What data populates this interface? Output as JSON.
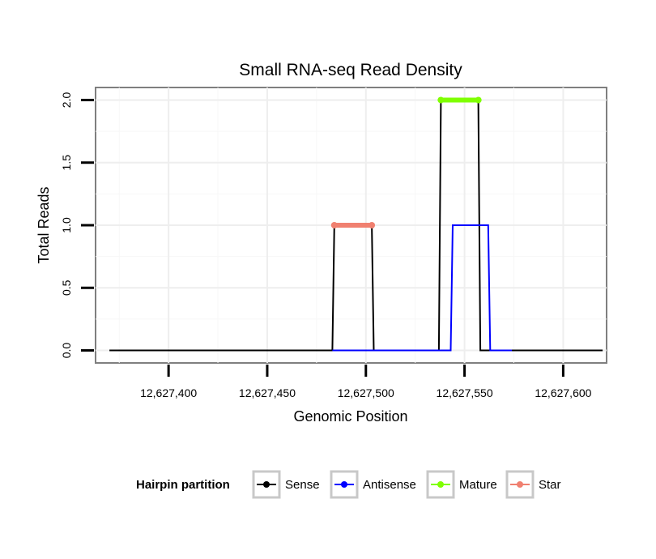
{
  "chart_data": {
    "type": "line",
    "title": "Small RNA-seq Read Density",
    "xlabel": "Genomic Position",
    "ylabel": "Total Reads",
    "xlim": [
      12627363,
      12627622
    ],
    "ylim": [
      -0.1,
      2.1
    ],
    "x_ticks": [
      12627400,
      12627450,
      12627500,
      12627550,
      12627600
    ],
    "x_tick_labels": [
      "12,627,400",
      "12,627,450",
      "12,627,500",
      "12,627,550",
      "12,627,600"
    ],
    "y_ticks": [
      0,
      0.5,
      1,
      1.5,
      2
    ],
    "y_tick_labels": [
      "0.0",
      "0.5",
      "1.0",
      "1.5",
      "2.0"
    ],
    "grid": true,
    "legend_position": "bottom",
    "legend_title": "Hairpin partition",
    "series": [
      {
        "name": "Sense",
        "color": "#000000",
        "kind": "line",
        "x": [
          12627370,
          12627483,
          12627484,
          12627503,
          12627504,
          12627537,
          12627538,
          12627557,
          12627558,
          12627620
        ],
        "y": [
          0,
          0,
          1,
          1,
          0,
          0,
          2,
          2,
          0,
          0
        ]
      },
      {
        "name": "Antisense",
        "color": "#0000ff",
        "kind": "line",
        "x": [
          12627483,
          12627504,
          12627505,
          12627543,
          12627544,
          12627562,
          12627563,
          12627573,
          12627574
        ],
        "y": [
          0,
          0,
          0,
          0,
          1,
          1,
          0,
          0,
          0
        ]
      },
      {
        "name": "Mature",
        "color": "#7fff00",
        "kind": "segment",
        "x": [
          12627538,
          12627557
        ],
        "y": [
          2,
          2
        ]
      },
      {
        "name": "Star",
        "color": "#f08070",
        "kind": "segment",
        "x": [
          12627484,
          12627503
        ],
        "y": [
          1,
          1
        ]
      }
    ]
  }
}
